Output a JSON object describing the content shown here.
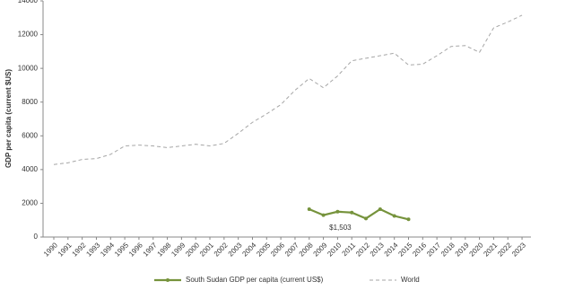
{
  "chart_data": {
    "type": "line",
    "y_label": "GDP per capita (current $US)",
    "categories": [
      "1990",
      "1991",
      "1992",
      "1993",
      "1994",
      "1995",
      "1996",
      "1997",
      "1998",
      "1999",
      "2000",
      "2001",
      "2002",
      "2003",
      "2004",
      "2005",
      "2006",
      "2007",
      "2008",
      "2009",
      "2010",
      "2011",
      "2012",
      "2013",
      "2014",
      "2015",
      "2016",
      "2017",
      "2018",
      "2019",
      "2020",
      "2021",
      "2022",
      "2023"
    ],
    "series": [
      {
        "name": "South Sudan GDP per capita (current US$)",
        "color": "#76933c",
        "style": "solid",
        "marker": true,
        "values": [
          null,
          null,
          null,
          null,
          null,
          null,
          null,
          null,
          null,
          null,
          null,
          null,
          null,
          null,
          null,
          null,
          null,
          null,
          1650,
          1300,
          1503,
          1450,
          1100,
          1650,
          1250,
          1050,
          null,
          null,
          null,
          null,
          null,
          null,
          null,
          null
        ],
        "value_labels": [
          null,
          null,
          null,
          null,
          null,
          null,
          null,
          null,
          null,
          null,
          null,
          null,
          null,
          null,
          null,
          null,
          null,
          null,
          null,
          null,
          "$1,503",
          null,
          null,
          null,
          null,
          null,
          null,
          null,
          null,
          null,
          null,
          null,
          null,
          null
        ]
      },
      {
        "name": "World",
        "color": "#a6a6a6",
        "style": "dashed",
        "marker": false,
        "values": [
          4300,
          4400,
          4600,
          4650,
          4900,
          5400,
          5450,
          5400,
          5300,
          5400,
          5500,
          5400,
          5550,
          6150,
          6800,
          7300,
          7850,
          8700,
          9400,
          8850,
          9550,
          10450,
          10600,
          10750,
          10900,
          10200,
          10250,
          10750,
          11300,
          11350,
          10950,
          12400,
          12750,
          13150
        ]
      }
    ],
    "ylim": [
      0,
      14000
    ],
    "yticks": [
      0,
      2000,
      4000,
      6000,
      8000,
      10000,
      12000,
      14000
    ],
    "legend": "bottom"
  }
}
